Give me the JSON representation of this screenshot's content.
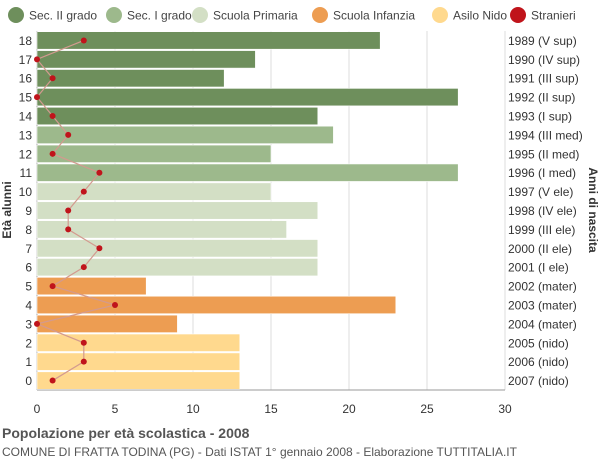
{
  "chart_data": {
    "type": "bar",
    "orientation": "horizontal",
    "title": "Popolazione per età scolastica - 2008",
    "subtitle": "COMUNE DI FRATTA TODINA (PG) - Dati ISTAT 1° gennaio 2008 - Elaborazione TUTTITALIA.IT",
    "ylabel_left": "Età alunni",
    "ylabel_right": "Anni di nascita",
    "xlim": [
      0,
      30
    ],
    "xticks": [
      0,
      5,
      10,
      15,
      20,
      25,
      30
    ],
    "grid": true,
    "legend_position": "top",
    "legend": [
      {
        "label": "Sec. II grado",
        "color": "#6e8f5c",
        "marker": "circle"
      },
      {
        "label": "Sec. I grado",
        "color": "#9db98c",
        "marker": "circle"
      },
      {
        "label": "Scuola Primaria",
        "color": "#d3dfc5",
        "marker": "circle"
      },
      {
        "label": "Scuola Infanzia",
        "color": "#ed9d52",
        "marker": "circle"
      },
      {
        "label": "Asilo Nido",
        "color": "#ffd98e",
        "marker": "circle"
      },
      {
        "label": "Stranieri",
        "color": "#c0141b",
        "marker": "circle"
      }
    ],
    "rows": [
      {
        "age": "18",
        "year": "1989 (V sup)",
        "value": 22,
        "stranieri": 3,
        "group": 0
      },
      {
        "age": "17",
        "year": "1990 (IV sup)",
        "value": 14,
        "stranieri": 0,
        "group": 0
      },
      {
        "age": "16",
        "year": "1991 (III sup)",
        "value": 12,
        "stranieri": 1,
        "group": 0
      },
      {
        "age": "15",
        "year": "1992 (II sup)",
        "value": 27,
        "stranieri": 0,
        "group": 0
      },
      {
        "age": "14",
        "year": "1993 (I sup)",
        "value": 18,
        "stranieri": 1,
        "group": 0
      },
      {
        "age": "13",
        "year": "1994 (III med)",
        "value": 19,
        "stranieri": 2,
        "group": 1
      },
      {
        "age": "12",
        "year": "1995 (II med)",
        "value": 15,
        "stranieri": 1,
        "group": 1
      },
      {
        "age": "11",
        "year": "1996 (I med)",
        "value": 27,
        "stranieri": 4,
        "group": 1
      },
      {
        "age": "10",
        "year": "1997 (V ele)",
        "value": 15,
        "stranieri": 3,
        "group": 2
      },
      {
        "age": "9",
        "year": "1998 (IV ele)",
        "value": 18,
        "stranieri": 2,
        "group": 2
      },
      {
        "age": "8",
        "year": "1999 (III ele)",
        "value": 16,
        "stranieri": 2,
        "group": 2
      },
      {
        "age": "7",
        "year": "2000 (II ele)",
        "value": 18,
        "stranieri": 4,
        "group": 2
      },
      {
        "age": "6",
        "year": "2001 (I ele)",
        "value": 18,
        "stranieri": 3,
        "group": 2
      },
      {
        "age": "5",
        "year": "2002 (mater)",
        "value": 7,
        "stranieri": 1,
        "group": 3
      },
      {
        "age": "4",
        "year": "2003 (mater)",
        "value": 23,
        "stranieri": 5,
        "group": 3
      },
      {
        "age": "3",
        "year": "2004 (mater)",
        "value": 9,
        "stranieri": 0,
        "group": 3
      },
      {
        "age": "2",
        "year": "2005 (nido)",
        "value": 13,
        "stranieri": 3,
        "group": 4
      },
      {
        "age": "1",
        "year": "2006 (nido)",
        "value": 13,
        "stranieri": 3,
        "group": 4
      },
      {
        "age": "0",
        "year": "2007 (nido)",
        "value": 13,
        "stranieri": 1,
        "group": 4
      }
    ],
    "colors": {
      "bar_stroke": "#ffffff",
      "grid": "#dddddd",
      "axis": "#999999",
      "stranieri_line": "#c0141b",
      "stranieri_line_faded": "#d39a8f"
    }
  }
}
